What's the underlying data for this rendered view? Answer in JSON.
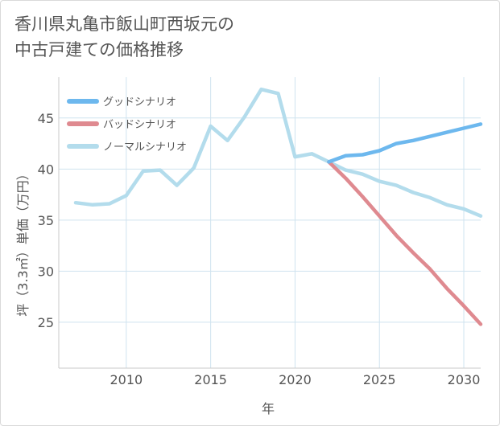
{
  "title_lines": [
    "香川県丸亀市飯山町西坂元の",
    "中古戸建ての価格推移"
  ],
  "chart_data": {
    "type": "line",
    "title": "香川県丸亀市飯山町西坂元の中古戸建ての価格推移",
    "xlabel": "年",
    "ylabel": "坪（3.3㎡）単価（万円）",
    "xlim": [
      2006,
      2031
    ],
    "ylim": [
      20.5,
      49
    ],
    "xticks": [
      2010,
      2015,
      2020,
      2025,
      2030
    ],
    "yticks": [
      25,
      30,
      35,
      40,
      45
    ],
    "grid": true,
    "legend_position": "top-left",
    "series": [
      {
        "name": "グッドシナリオ",
        "color": "#6db8ee",
        "x": [
          2022,
          2023,
          2024,
          2025,
          2026,
          2027,
          2028,
          2029,
          2030,
          2031
        ],
        "y": [
          40.7,
          41.3,
          41.4,
          41.8,
          42.5,
          42.8,
          43.2,
          43.6,
          44.0,
          44.4
        ]
      },
      {
        "name": "バッドシナリオ",
        "color": "#df8a90",
        "x": [
          2022,
          2023,
          2024,
          2025,
          2026,
          2027,
          2028,
          2029,
          2030,
          2031
        ],
        "y": [
          40.7,
          39.1,
          37.3,
          35.4,
          33.5,
          31.8,
          30.2,
          28.3,
          26.6,
          24.8
        ]
      },
      {
        "name": "ノーマルシナリオ",
        "color": "#b3dcec",
        "x": [
          2007,
          2008,
          2009,
          2010,
          2011,
          2012,
          2013,
          2014,
          2015,
          2016,
          2017,
          2018,
          2019,
          2020,
          2021,
          2022,
          2023,
          2024,
          2025,
          2026,
          2027,
          2028,
          2029,
          2030,
          2031
        ],
        "y": [
          36.7,
          36.5,
          36.6,
          37.4,
          39.8,
          39.9,
          38.4,
          40.1,
          44.2,
          42.8,
          45.1,
          47.8,
          47.4,
          41.2,
          41.5,
          40.7,
          39.9,
          39.5,
          38.8,
          38.4,
          37.7,
          37.2,
          36.5,
          36.1,
          35.4
        ]
      }
    ]
  }
}
